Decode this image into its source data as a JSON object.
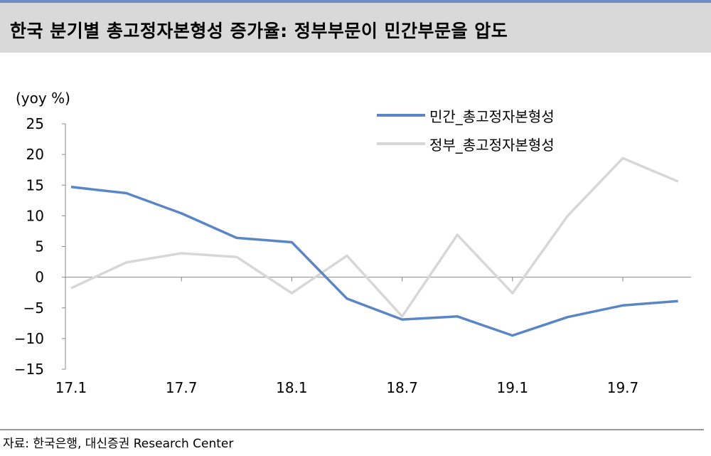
{
  "title": "한국 분기별 총고정자본형성 증가율: 정부부문이 민간부문을 압도",
  "source": "자료: 한국은행, 대신증권 Research Center",
  "chart_data": {
    "type": "line",
    "ylabel": "(yoy %)",
    "ylim": [
      -15,
      25
    ],
    "yticks": [
      25,
      20,
      15,
      10,
      5,
      0,
      -5,
      -10,
      -15
    ],
    "x": [
      "17.1",
      "17.4",
      "17.7",
      "17.10",
      "18.1",
      "18.4",
      "18.7",
      "18.10",
      "19.1",
      "19.4",
      "19.7",
      "19.10"
    ],
    "xtick_labels": [
      "17.1",
      "17.7",
      "18.1",
      "18.7",
      "19.1",
      "19.7"
    ],
    "grid": false,
    "legend_position": "top-right",
    "series": [
      {
        "name": "민간_총고정자본형성",
        "color": "#5b86c5",
        "values": [
          14.7,
          13.7,
          10.4,
          6.4,
          5.7,
          -3.5,
          -6.9,
          -6.4,
          -9.5,
          -6.5,
          -4.6,
          -3.9
        ]
      },
      {
        "name": "정부_총고정자본형성",
        "color": "#d7d7d7",
        "values": [
          -1.8,
          2.4,
          3.9,
          3.3,
          -2.6,
          3.5,
          -6.4,
          6.9,
          -2.6,
          10.0,
          19.4,
          15.6
        ]
      }
    ]
  }
}
